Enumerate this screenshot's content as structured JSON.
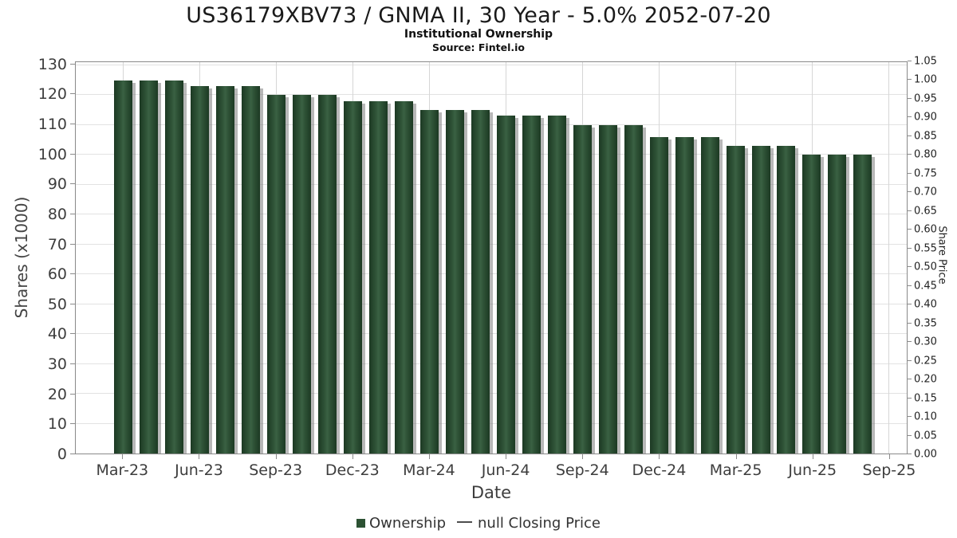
{
  "header": {
    "title": "US36179XBV73 / GNMA II, 30 Year - 5.0% 2052-07-20",
    "subtitle": "Institutional Ownership",
    "source": "Source: Fintel.io"
  },
  "chart_data": {
    "type": "bar",
    "title": "US36179XBV73 / GNMA II, 30 Year - 5.0% 2052-07-20",
    "subtitle": "Institutional Ownership",
    "source": "Source: Fintel.io",
    "grid": true,
    "categories": [
      "Mar-23",
      "Apr-23",
      "May-23",
      "Jun-23",
      "Jul-23",
      "Aug-23",
      "Sep-23",
      "Oct-23",
      "Nov-23",
      "Dec-23",
      "Jan-24",
      "Feb-24",
      "Mar-24",
      "Apr-24",
      "May-24",
      "Jun-24",
      "Jul-24",
      "Aug-24",
      "Sep-24",
      "Oct-24",
      "Nov-24",
      "Dec-24",
      "Jan-25",
      "Feb-25",
      "Mar-25",
      "Apr-25",
      "May-25",
      "Jun-25",
      "Jul-25",
      "Aug-25"
    ],
    "series": [
      {
        "name": "Ownership",
        "units": "Shares (x1000)",
        "values": [
          125,
          125,
          125,
          123,
          123,
          123,
          120,
          120,
          120,
          118,
          118,
          118,
          115,
          115,
          115,
          113,
          113,
          113,
          110,
          110,
          110,
          106,
          106,
          106,
          103,
          103,
          103,
          100,
          100,
          100
        ]
      },
      {
        "name": "null Closing Price",
        "units": "Share Price",
        "values": []
      }
    ],
    "x_axis": {
      "label": "Date",
      "tick_labels": [
        "Mar-23",
        "Jun-23",
        "Sep-23",
        "Dec-23",
        "Mar-24",
        "Jun-24",
        "Sep-24",
        "Dec-24",
        "Mar-25",
        "Jun-25",
        "Sep-25"
      ],
      "tick_months": [
        0,
        3,
        6,
        9,
        12,
        15,
        18,
        21,
        24,
        27,
        30
      ],
      "range_months": [
        -1.85,
        30.72
      ]
    },
    "y_axis_left": {
      "label": "Shares (x1000)",
      "ticks": [
        0,
        10,
        20,
        30,
        40,
        50,
        60,
        70,
        80,
        90,
        100,
        110,
        120,
        130
      ],
      "axis_max": 131
    },
    "y_axis_right": {
      "label": "Share Price",
      "ticks": [
        0,
        0.05,
        0.1,
        0.15,
        0.2,
        0.25,
        0.3,
        0.35,
        0.4,
        0.45,
        0.5,
        0.55,
        0.6,
        0.65,
        0.7,
        0.75,
        0.8,
        0.85,
        0.9,
        0.95,
        1.0,
        1.05
      ],
      "axis_max": 1.05
    },
    "legend": [
      {
        "label": "Ownership",
        "marker": "square",
        "color": "#2c5233"
      },
      {
        "label": "null Closing Price",
        "marker": "line",
        "color": "#4d4d4d"
      }
    ],
    "colors": {
      "bar_edge": "#1c3923",
      "bar_center": "#3a6143",
      "bar_shadow": "#9a9a9a",
      "gridline_h": "#e2e2e2",
      "gridline_v": "#d6d6d6",
      "frame": "#8a8a8a"
    }
  }
}
